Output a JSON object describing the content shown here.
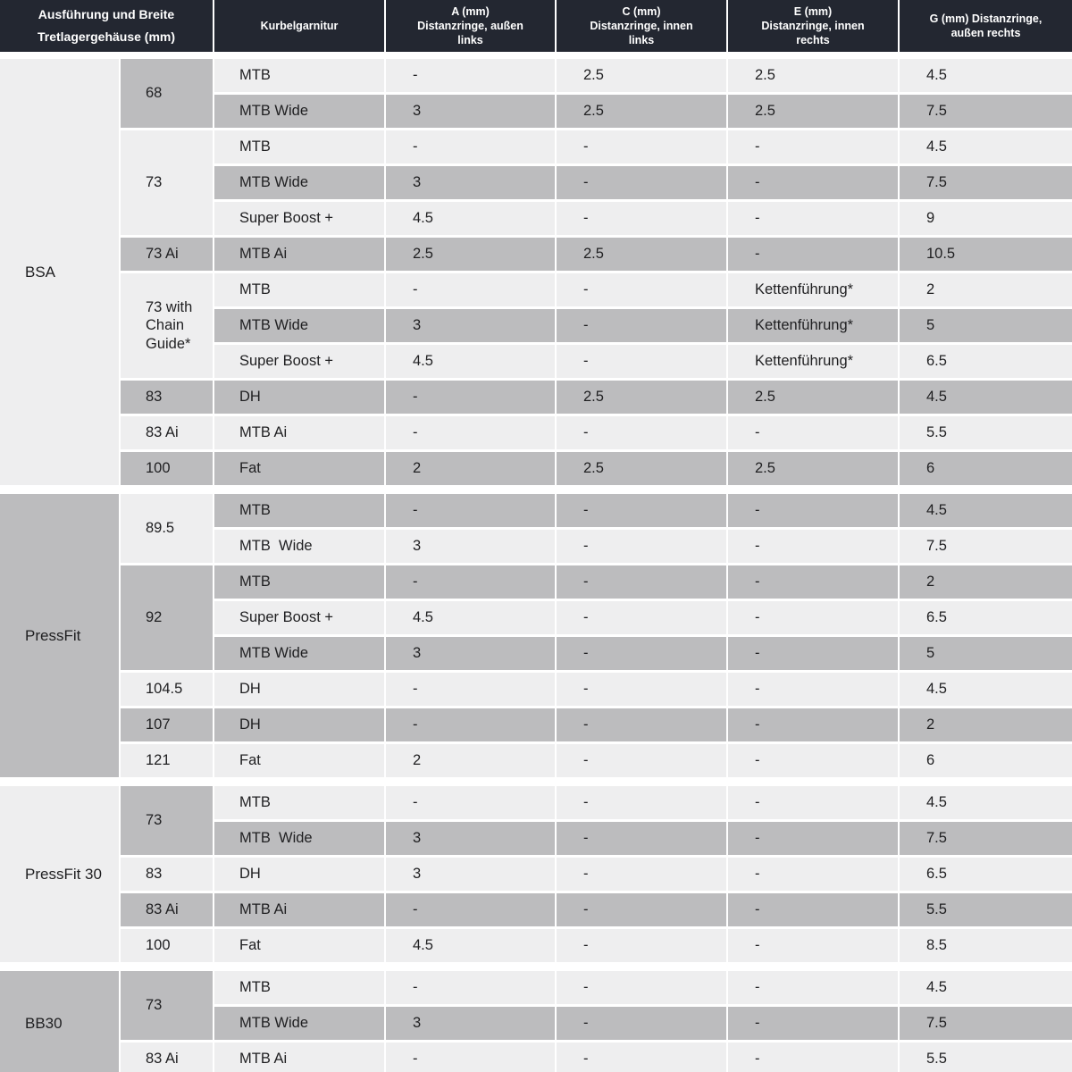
{
  "colors": {
    "header_bg": "#232731",
    "header_text": "#ffffff",
    "row_light": "#eeeeef",
    "row_dark": "#bcbcbe",
    "text": "#1f1f21",
    "page_bg": "#ffffff"
  },
  "header": {
    "columns": [
      "Ausführung und Breite\nTretlagergehäuse (mm)",
      "Kurbelgarnitur",
      "A (mm)\nDistanzringe, außen\nlinks",
      "C (mm)\nDistanzringe, innen\nlinks",
      "E (mm)\nDistanzringe, innen\nrechts",
      "G (mm) Distanzringe,\naußen rechts"
    ]
  },
  "sections": [
    {
      "shell": "BSA",
      "shell_shade": "light",
      "width_start_shade": "dark",
      "row_start_shade": "light",
      "widths": [
        {
          "label": "68",
          "rows": [
            {
              "crank": "MTB",
              "values": [
                "-",
                "2.5",
                "2.5",
                "4.5"
              ]
            },
            {
              "crank": "MTB Wide",
              "values": [
                "3",
                "2.5",
                "2.5",
                "7.5"
              ]
            }
          ]
        },
        {
          "label": "73",
          "rows": [
            {
              "crank": "MTB",
              "values": [
                "-",
                "-",
                "-",
                "4.5"
              ]
            },
            {
              "crank": "MTB Wide",
              "values": [
                "3",
                "-",
                "-",
                "7.5"
              ]
            },
            {
              "crank": "Super Boost +",
              "values": [
                "4.5",
                "-",
                "-",
                "9"
              ]
            }
          ]
        },
        {
          "label": "73 Ai",
          "rows": [
            {
              "crank": "MTB Ai",
              "values": [
                "2.5",
                "2.5",
                "-",
                "10.5"
              ]
            }
          ]
        },
        {
          "label": "73 with Chain Guide*",
          "rows": [
            {
              "crank": "MTB",
              "values": [
                "-",
                "-",
                "Kettenführung*",
                "2"
              ]
            },
            {
              "crank": "MTB Wide",
              "values": [
                "3",
                "-",
                "Kettenführung*",
                "5"
              ]
            },
            {
              "crank": "Super Boost +",
              "values": [
                "4.5",
                "-",
                "Kettenführung*",
                "6.5"
              ]
            }
          ]
        },
        {
          "label": "83",
          "rows": [
            {
              "crank": "DH",
              "values": [
                "-",
                "2.5",
                "2.5",
                "4.5"
              ]
            }
          ]
        },
        {
          "label": "83 Ai",
          "rows": [
            {
              "crank": "MTB Ai",
              "values": [
                "-",
                "-",
                "-",
                "5.5"
              ]
            }
          ]
        },
        {
          "label": "100",
          "rows": [
            {
              "crank": "Fat",
              "values": [
                "2",
                "2.5",
                "2.5",
                "6"
              ]
            }
          ]
        }
      ]
    },
    {
      "shell": "PressFit",
      "shell_shade": "dark",
      "width_start_shade": "light",
      "row_start_shade": "dark",
      "widths": [
        {
          "label": "89.5",
          "rows": [
            {
              "crank": "MTB",
              "values": [
                "-",
                "-",
                "-",
                "4.5"
              ]
            },
            {
              "crank": "MTB  Wide",
              "values": [
                "3",
                "-",
                "-",
                "7.5"
              ]
            }
          ]
        },
        {
          "label": "92",
          "rows": [
            {
              "crank": "MTB",
              "values": [
                "-",
                "-",
                "-",
                "2"
              ]
            },
            {
              "crank": "Super Boost +",
              "values": [
                "4.5",
                "-",
                "-",
                "6.5"
              ]
            },
            {
              "crank": "MTB Wide",
              "values": [
                "3",
                "-",
                "-",
                "5"
              ]
            }
          ]
        },
        {
          "label": "104.5",
          "rows": [
            {
              "crank": "DH",
              "values": [
                "-",
                "-",
                "-",
                "4.5"
              ]
            }
          ]
        },
        {
          "label": "107",
          "rows": [
            {
              "crank": "DH",
              "values": [
                "-",
                "-",
                "-",
                "2"
              ]
            }
          ]
        },
        {
          "label": "121",
          "rows": [
            {
              "crank": "Fat",
              "values": [
                "2",
                "-",
                "-",
                "6"
              ]
            }
          ]
        }
      ]
    },
    {
      "shell": "PressFit 30",
      "shell_shade": "light",
      "width_start_shade": "dark",
      "row_start_shade": "light",
      "widths": [
        {
          "label": "73",
          "rows": [
            {
              "crank": "MTB",
              "values": [
                "-",
                "-",
                "-",
                "4.5"
              ]
            },
            {
              "crank": "MTB  Wide",
              "values": [
                "3",
                "-",
                "-",
                "7.5"
              ]
            }
          ]
        },
        {
          "label": "83",
          "rows": [
            {
              "crank": "DH",
              "values": [
                "3",
                "-",
                "-",
                "6.5"
              ]
            }
          ]
        },
        {
          "label": "83 Ai",
          "rows": [
            {
              "crank": "MTB Ai",
              "values": [
                "-",
                "-",
                "-",
                "5.5"
              ]
            }
          ]
        },
        {
          "label": "100",
          "rows": [
            {
              "crank": "Fat",
              "values": [
                "4.5",
                "-",
                "-",
                "8.5"
              ]
            }
          ]
        }
      ]
    },
    {
      "shell": "BB30",
      "shell_shade": "dark",
      "width_start_shade": "dark",
      "row_start_shade": "light",
      "widths": [
        {
          "label": "73",
          "rows": [
            {
              "crank": "MTB",
              "values": [
                "-",
                "-",
                "-",
                "4.5"
              ]
            },
            {
              "crank": "MTB Wide",
              "values": [
                "3",
                "-",
                "-",
                "7.5"
              ]
            }
          ]
        },
        {
          "label": "83 Ai",
          "rows": [
            {
              "crank": "MTB Ai",
              "values": [
                "-",
                "-",
                "-",
                "5.5"
              ]
            }
          ]
        }
      ]
    }
  ]
}
